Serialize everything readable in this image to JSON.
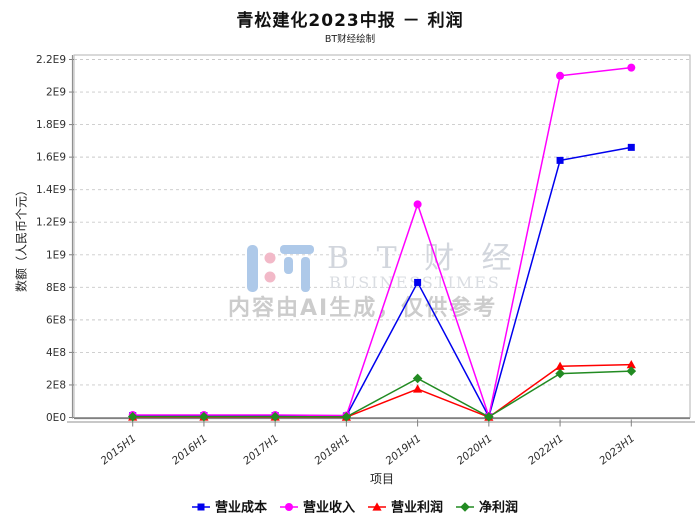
{
  "header": {
    "title": "青松建化2023中报 － 利润",
    "subtitle": "BT财经绘制"
  },
  "watermark": {
    "brand": "B T 财 经",
    "brand_sub": "BUSINESSTIMES",
    "notice": "内容由AI生成，仅供参考",
    "logo_blue": "#aec9e9",
    "logo_pink": "#f2b9c8"
  },
  "chart_data": {
    "type": "line",
    "title": "青松建化2023中报 － 利润",
    "xlabel": "项目",
    "ylabel": "数额（人民币个元）",
    "ylim": [
      0,
      2200000000
    ],
    "grid": true,
    "legend_position": "bottom",
    "categories": [
      "2015H1",
      "2016H1",
      "2017H1",
      "2018H1",
      "2019H1",
      "2020H1",
      "2022H1",
      "2023H1"
    ],
    "yticks": [
      {
        "value": 0,
        "label": "0E0"
      },
      {
        "value": 200000000,
        "label": "2E8"
      },
      {
        "value": 400000000,
        "label": "4E8"
      },
      {
        "value": 600000000,
        "label": "6E8"
      },
      {
        "value": 800000000,
        "label": "8E8"
      },
      {
        "value": 1000000000,
        "label": "1E9"
      },
      {
        "value": 1200000000,
        "label": "1.2E9"
      },
      {
        "value": 1400000000,
        "label": "1.4E9"
      },
      {
        "value": 1600000000,
        "label": "1.6E9"
      },
      {
        "value": 1800000000,
        "label": "1.8E9"
      },
      {
        "value": 2000000000,
        "label": "2E9"
      },
      {
        "value": 2200000000,
        "label": "2.2E9"
      }
    ],
    "series": [
      {
        "name": "营业成本",
        "color": "#0000ee",
        "marker": "square",
        "values": [
          12000000,
          12000000,
          12000000,
          10000000,
          830000000,
          5000000,
          1580000000,
          1660000000
        ]
      },
      {
        "name": "营业收入",
        "color": "#ff00ff",
        "marker": "circle",
        "values": [
          15000000,
          15000000,
          15000000,
          12000000,
          1310000000,
          8000000,
          2100000000,
          2150000000
        ]
      },
      {
        "name": "营业利润",
        "color": "#ff0000",
        "marker": "triangle",
        "values": [
          3000000,
          3000000,
          3000000,
          2000000,
          175000000,
          2000000,
          315000000,
          325000000
        ]
      },
      {
        "name": "净利润",
        "color": "#228b22",
        "marker": "diamond",
        "values": [
          5000000,
          5000000,
          5000000,
          4000000,
          240000000,
          4000000,
          270000000,
          285000000
        ]
      }
    ]
  }
}
